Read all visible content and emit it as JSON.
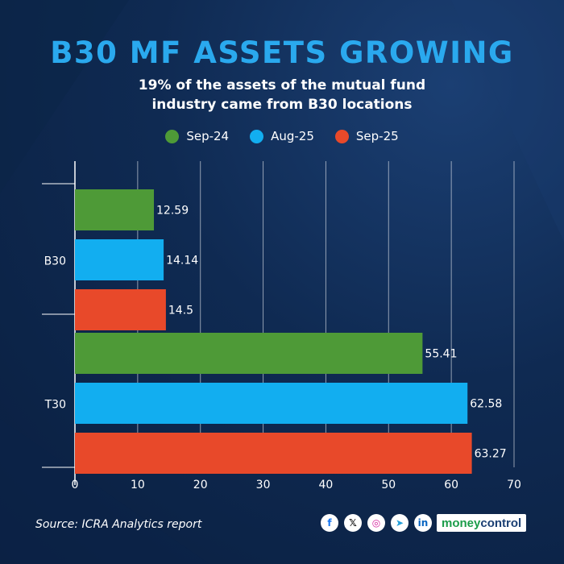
{
  "header": {
    "title": "B30 MF ASSETS GROWING",
    "subtitle_line1": "19% of the assets of the mutual fund",
    "subtitle_line2": "industry came from B30 locations"
  },
  "colors": {
    "sep24": "#4e9a37",
    "aug25": "#12aef0",
    "sep25": "#e8492a",
    "title": "#2aa9ee"
  },
  "chart_data": {
    "type": "bar",
    "orientation": "horizontal",
    "title": "B30 MF ASSETS GROWING",
    "categories": [
      "B30",
      "T30"
    ],
    "series": [
      {
        "name": "Sep-24",
        "values": [
          12.59,
          55.41
        ]
      },
      {
        "name": "Aug-25",
        "values": [
          14.14,
          62.58
        ]
      },
      {
        "name": "Sep-25",
        "values": [
          14.5,
          63.27
        ]
      }
    ],
    "xlim": [
      0,
      70
    ],
    "xticks": [
      0,
      10,
      20,
      30,
      40,
      50,
      60,
      70
    ],
    "grid": true,
    "legend": "top-center"
  },
  "footer": {
    "source": "Source: ICRA Analytics report",
    "brand_part1": "money",
    "brand_part2": "control",
    "social": [
      "facebook-icon",
      "x-icon",
      "instagram-icon",
      "telegram-icon",
      "linkedin-icon"
    ]
  }
}
